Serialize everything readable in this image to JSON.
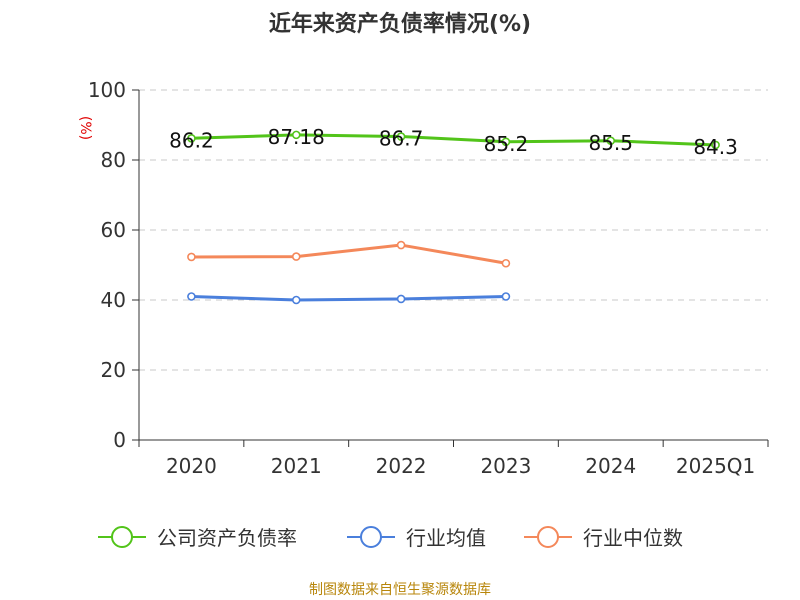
{
  "chart_data": {
    "type": "line",
    "title": "近年来资产负债率情况(%)",
    "ylabel": "(%)",
    "xlabel": "",
    "categories": [
      "2020",
      "2021",
      "2022",
      "2023",
      "2024",
      "2025Q1"
    ],
    "ylim": [
      0,
      100
    ],
    "yticks": [
      "0",
      "20",
      "40",
      "60",
      "80",
      "100"
    ],
    "grid": "horizontal-dashed",
    "legend_position": "bottom",
    "series": [
      {
        "name": "公司资产负债率",
        "color": "#52c41a",
        "values": [
          86.2,
          87.18,
          86.7,
          85.2,
          85.5,
          84.3
        ],
        "labels": [
          "86.2",
          "87.18",
          "86.7",
          "85.2",
          "85.5",
          "84.3"
        ],
        "show_labels": true
      },
      {
        "name": "行业均值",
        "color": "#4a7fdc",
        "values": [
          41.0,
          40.0,
          40.3,
          41.0,
          null,
          null
        ],
        "show_labels": false
      },
      {
        "name": "行业中位数",
        "color": "#f4885a",
        "values": [
          52.3,
          52.4,
          55.7,
          50.5,
          null,
          null
        ],
        "show_labels": false
      }
    ]
  },
  "source": "制图数据来自恒生聚源数据库"
}
